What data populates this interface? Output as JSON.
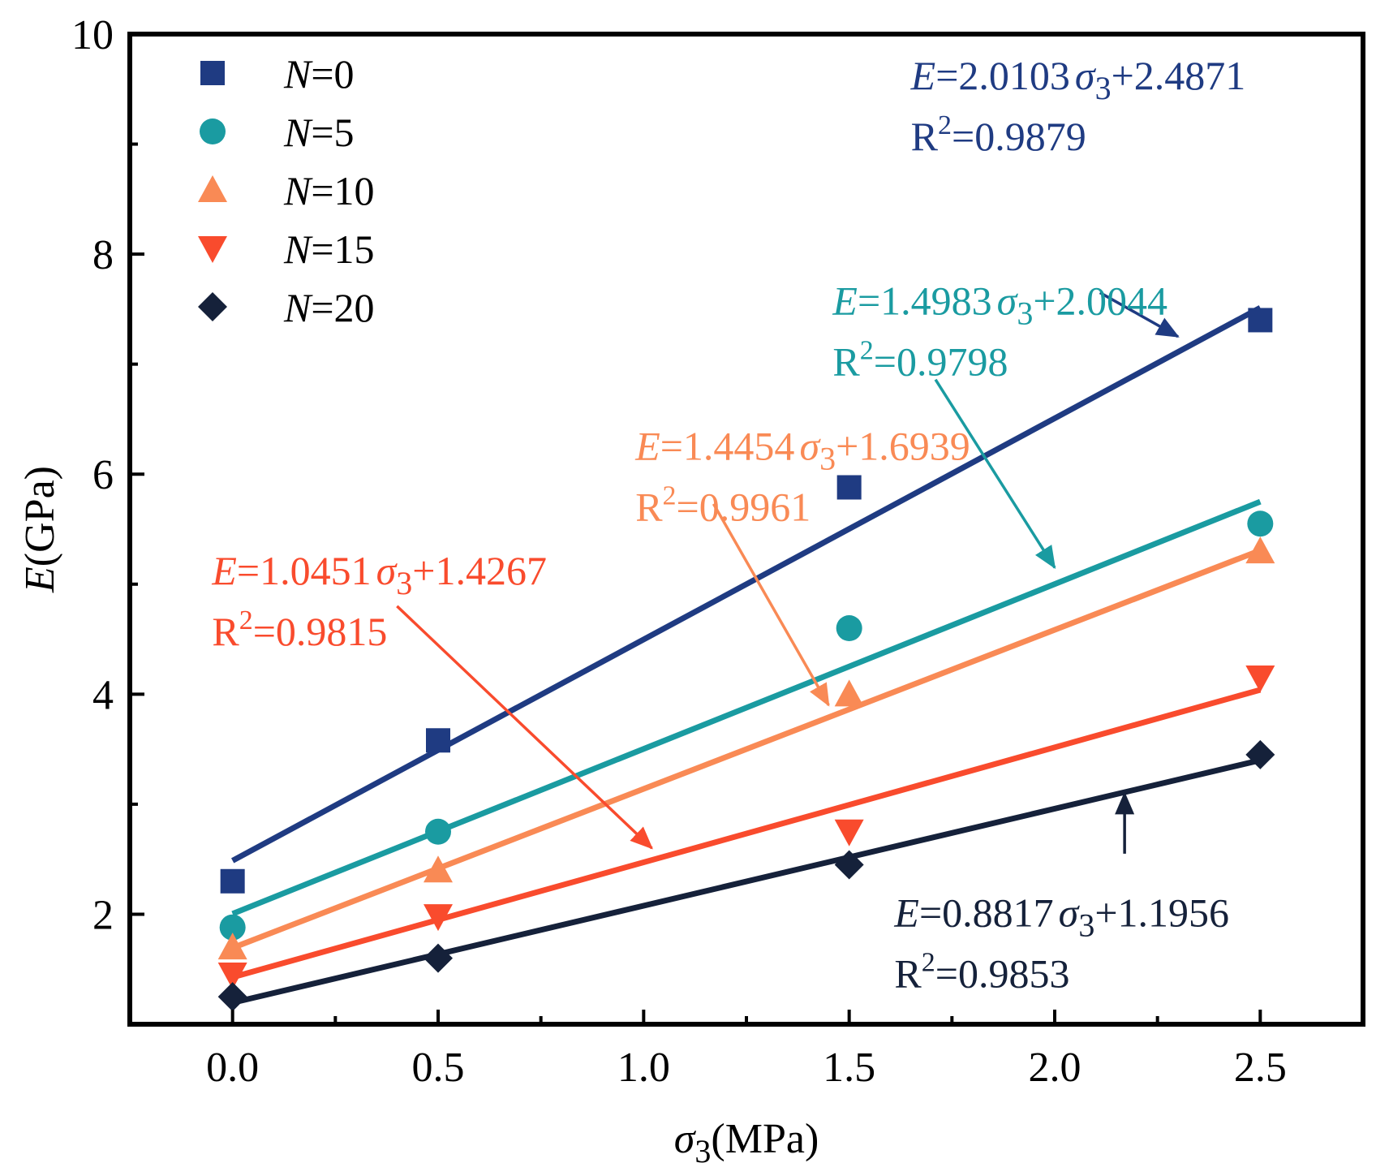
{
  "chart_data": {
    "type": "scatter",
    "title": "",
    "xlabel": {
      "symbol": "σ",
      "sub": "3",
      "unit": "(MPa)"
    },
    "ylabel": {
      "symbol": "E",
      "unit": "(GPa)"
    },
    "xlim": [
      -0.25,
      2.75
    ],
    "ylim": [
      1.0,
      10.0
    ],
    "x_ticks": [
      0.0,
      0.5,
      1.0,
      1.5,
      2.0,
      2.5
    ],
    "x_tick_labels": [
      "0.0",
      "0.5",
      "1.0",
      "1.5",
      "2.0",
      "2.5"
    ],
    "y_ticks": [
      2,
      4,
      6,
      8,
      10
    ],
    "y_tick_labels": [
      "2",
      "4",
      "6",
      "8",
      "10"
    ],
    "x_minor_ticks": [
      -0.25,
      0.25,
      0.75,
      1.25,
      1.75,
      2.25,
      2.75
    ],
    "y_minor_ticks": [
      1,
      3,
      5,
      7,
      9
    ],
    "legend_position": "top-left",
    "series": [
      {
        "name": "N=0",
        "legend_var": "N",
        "legend_value": "=0",
        "marker": "square",
        "color": "#1f3b82",
        "x": [
          0.0,
          0.5,
          1.5,
          2.5
        ],
        "y": [
          2.3,
          3.58,
          5.88,
          7.4
        ],
        "fit": {
          "slope": 2.0103,
          "intercept": 2.4871
        },
        "equation": {
          "var": "E",
          "coef": "=2.0103",
          "sym": "σ",
          "sub": "3",
          "rest": "+2.4871"
        },
        "r2": {
          "r": "R",
          "sup": "2",
          "value": "=0.9879"
        },
        "annotation_anchor": {
          "x": 1.65,
          "y": 9.5
        },
        "arrow": {
          "from": [
            2.11,
            7.65
          ],
          "to": [
            2.3,
            7.25
          ]
        }
      },
      {
        "name": "N=5",
        "legend_var": "N",
        "legend_value": "=5",
        "marker": "circle",
        "color": "#1a9ba1",
        "x": [
          0.0,
          0.5,
          1.5,
          2.5
        ],
        "y": [
          1.88,
          2.75,
          4.6,
          5.55
        ],
        "fit": {
          "slope": 1.4983,
          "intercept": 2.0044
        },
        "equation": {
          "var": "E",
          "coef": "=1.4983",
          "sym": "σ",
          "sub": "3",
          "rest": "+2.0044"
        },
        "r2": {
          "r": "R",
          "sup": "2",
          "value": "=0.9798"
        },
        "annotation_anchor": {
          "x": 1.46,
          "y": 7.45
        },
        "arrow": {
          "from": [
            1.71,
            6.86
          ],
          "to": [
            2.0,
            5.15
          ]
        }
      },
      {
        "name": "N=10",
        "legend_var": "N",
        "legend_value": "=10",
        "marker": "triangle-up",
        "color": "#f98a55",
        "x": [
          0.0,
          0.5,
          1.5,
          2.5
        ],
        "y": [
          1.7,
          2.4,
          4.0,
          5.3
        ],
        "fit": {
          "slope": 1.4454,
          "intercept": 1.6939
        },
        "equation": {
          "var": "E",
          "coef": "=1.4454",
          "sym": "σ",
          "sub": "3",
          "rest": "+1.6939"
        },
        "r2": {
          "r": "R",
          "sup": "2",
          "value": "=0.9961"
        },
        "annotation_anchor": {
          "x": 0.98,
          "y": 6.13
        },
        "arrow": {
          "from": [
            1.17,
            5.73
          ],
          "to": [
            1.45,
            3.9
          ]
        }
      },
      {
        "name": "N=15",
        "legend_var": "N",
        "legend_value": "=15",
        "marker": "triangle-down",
        "color": "#f94b2d",
        "x": [
          0.0,
          0.5,
          1.5,
          2.5
        ],
        "y": [
          1.45,
          1.98,
          2.75,
          4.15
        ],
        "fit": {
          "slope": 1.0451,
          "intercept": 1.4267
        },
        "equation": {
          "var": "E",
          "coef": "=1.0451",
          "sym": "σ",
          "sub": "3",
          "rest": "+1.4267"
        },
        "r2": {
          "r": "R",
          "sup": "2",
          "value": "=0.9815"
        },
        "annotation_anchor": {
          "x": -0.05,
          "y": 5.0
        },
        "arrow": {
          "from": [
            0.4,
            4.8
          ],
          "to": [
            1.02,
            2.6
          ]
        }
      },
      {
        "name": "N=20",
        "legend_var": "N",
        "legend_value": "=20",
        "marker": "diamond",
        "color": "#15213a",
        "x": [
          0.0,
          0.5,
          1.5,
          2.5
        ],
        "y": [
          1.25,
          1.6,
          2.45,
          3.45
        ],
        "fit": {
          "slope": 0.8817,
          "intercept": 1.1956
        },
        "equation": {
          "var": "E",
          "coef": "=0.8817",
          "sym": "σ",
          "sub": "3",
          "rest": "+1.1956"
        },
        "r2": {
          "r": "R",
          "sup": "2",
          "value": "=0.9853"
        },
        "annotation_anchor": {
          "x": 1.61,
          "y": 1.89
        },
        "arrow": {
          "from": [
            2.17,
            2.55
          ],
          "to": [
            2.17,
            3.1
          ]
        }
      }
    ]
  }
}
